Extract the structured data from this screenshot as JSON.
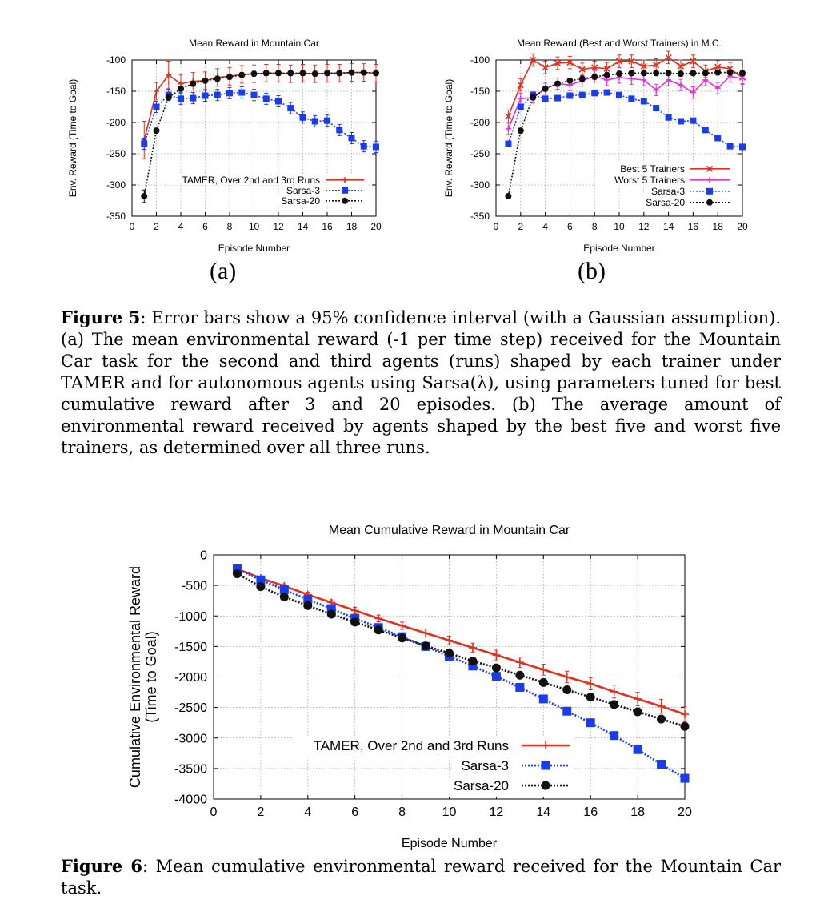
{
  "figures": {
    "panel_a": "(a)",
    "panel_b": "(b)",
    "fig5": {
      "label": "Figure 5",
      "text": ": Error bars show a 95% confidence interval (with a Gaussian assumption). (a) The mean environmental reward (-1 per time step) received for the Mountain Car task for the second and third agents (runs) shaped by each trainer under TAMER and for autonomous agents using Sarsa(λ), using parameters tuned for best cumulative reward after 3 and 20 episodes. (b) The average amount of environmental reward received by agents shaped by the best five and worst five trainers, as determined over all three runs."
    },
    "fig6": {
      "label": "Figure 6",
      "text": ": Mean cumulative environmental reward received for the Mountain Car task."
    }
  },
  "chart_data": [
    {
      "type": "line",
      "title": "Mean Reward in Mountain Car",
      "xlabel": "Episode Number",
      "ylabel": "Env. Reward (Time to Goal)",
      "xlim": [
        0,
        20
      ],
      "ylim": [
        -350,
        -100
      ],
      "xticks": [
        0,
        2,
        4,
        6,
        8,
        10,
        12,
        14,
        16,
        18,
        20
      ],
      "yticks": [
        -100,
        -150,
        -200,
        -250,
        -300,
        -350
      ],
      "grid": true,
      "legend": "bottom-right",
      "series": [
        {
          "name": "TAMER, Over 2nd and 3rd Runs",
          "color": "#e03020",
          "marker": "plus",
          "x": [
            1,
            2,
            3,
            4,
            5,
            6,
            7,
            8,
            9,
            10,
            11,
            12,
            13,
            14,
            15,
            16,
            17,
            18,
            19,
            20
          ],
          "y": [
            -228,
            -150,
            -124,
            -138,
            -134,
            -133,
            -128,
            -126,
            -123,
            -122,
            -121,
            -121,
            -122,
            -121,
            -122,
            -121,
            -121,
            -120,
            -120,
            -121
          ]
        },
        {
          "name": "Sarsa-3",
          "color": "#1a3cf0",
          "marker": "square",
          "x": [
            1,
            2,
            3,
            4,
            5,
            6,
            7,
            8,
            9,
            10,
            11,
            12,
            13,
            14,
            15,
            16,
            17,
            18,
            19,
            20
          ],
          "y": [
            -234,
            -175,
            -156,
            -162,
            -161,
            -157,
            -156,
            -153,
            -152,
            -156,
            -162,
            -166,
            -177,
            -192,
            -198,
            -197,
            -212,
            -225,
            -238,
            -239
          ]
        },
        {
          "name": "Sarsa-20",
          "color": "#101010",
          "marker": "circle",
          "x": [
            1,
            2,
            3,
            4,
            5,
            6,
            7,
            8,
            9,
            10,
            11,
            12,
            13,
            14,
            15,
            16,
            17,
            18,
            19,
            20
          ],
          "y": [
            -318,
            -213,
            -160,
            -146,
            -138,
            -133,
            -130,
            -127,
            -124,
            -122,
            -121,
            -121,
            -121,
            -121,
            -122,
            -121,
            -121,
            -120,
            -120,
            -121
          ]
        }
      ]
    },
    {
      "type": "line",
      "title": "Mean Reward (Best and Worst Trainers) in M.C.",
      "xlabel": "Episode Number",
      "ylabel": "Env. Reward (Time to Goal)",
      "xlim": [
        0,
        20
      ],
      "ylim": [
        -350,
        -100
      ],
      "xticks": [
        0,
        2,
        4,
        6,
        8,
        10,
        12,
        14,
        16,
        18,
        20
      ],
      "yticks": [
        -100,
        -150,
        -200,
        -250,
        -300,
        -350
      ],
      "grid": true,
      "legend": "bottom-right",
      "series": [
        {
          "name": "Best 5 Trainers",
          "color": "#e03020",
          "marker": "x",
          "x": [
            1,
            2,
            3,
            4,
            5,
            6,
            7,
            8,
            9,
            10,
            11,
            12,
            13,
            14,
            15,
            16,
            17,
            18,
            19,
            20
          ],
          "y": [
            -190,
            -140,
            -100,
            -112,
            -105,
            -104,
            -115,
            -112,
            -114,
            -102,
            -102,
            -110,
            -108,
            -96,
            -110,
            -102,
            -118,
            -111,
            -114,
            -128
          ]
        },
        {
          "name": "Worst 5 Trainers",
          "color": "#e030e0",
          "marker": "plus",
          "x": [
            1,
            2,
            3,
            4,
            5,
            6,
            7,
            8,
            9,
            10,
            11,
            12,
            13,
            14,
            15,
            16,
            17,
            18,
            19,
            20
          ],
          "y": [
            -210,
            -162,
            -160,
            -146,
            -138,
            -140,
            -133,
            -126,
            -132,
            -128,
            -130,
            -132,
            -148,
            -132,
            -140,
            -152,
            -132,
            -145,
            -126,
            -130
          ]
        },
        {
          "name": "Sarsa-3",
          "color": "#1a3cf0",
          "marker": "square",
          "x": [
            1,
            2,
            3,
            4,
            5,
            6,
            7,
            8,
            9,
            10,
            11,
            12,
            13,
            14,
            15,
            16,
            17,
            18,
            19,
            20
          ],
          "y": [
            -234,
            -175,
            -156,
            -162,
            -161,
            -157,
            -156,
            -153,
            -152,
            -156,
            -162,
            -166,
            -177,
            -192,
            -198,
            -197,
            -212,
            -225,
            -238,
            -239
          ]
        },
        {
          "name": "Sarsa-20",
          "color": "#101010",
          "marker": "circle",
          "x": [
            1,
            2,
            3,
            4,
            5,
            6,
            7,
            8,
            9,
            10,
            11,
            12,
            13,
            14,
            15,
            16,
            17,
            18,
            19,
            20
          ],
          "y": [
            -318,
            -213,
            -160,
            -146,
            -138,
            -133,
            -130,
            -127,
            -124,
            -122,
            -121,
            -121,
            -121,
            -121,
            -122,
            -121,
            -121,
            -120,
            -120,
            -121
          ]
        }
      ]
    },
    {
      "type": "line",
      "title": "Mean Cumulative Reward in Mountain Car",
      "xlabel": "Episode Number",
      "ylabel": "Cumulative Environmental Reward (Time to Goal)",
      "xlim": [
        0,
        20
      ],
      "ylim": [
        -4000,
        0
      ],
      "xticks": [
        0,
        2,
        4,
        6,
        8,
        10,
        12,
        14,
        16,
        18,
        20
      ],
      "yticks": [
        0,
        -500,
        -1000,
        -1500,
        -2000,
        -2500,
        -3000,
        -3500,
        -4000
      ],
      "grid": true,
      "legend": "bottom-left",
      "series": [
        {
          "name": "TAMER, Over 2nd and 3rd Runs",
          "color": "#e03020",
          "marker": "plus",
          "x": [
            1,
            2,
            3,
            4,
            5,
            6,
            7,
            8,
            9,
            10,
            11,
            12,
            13,
            14,
            15,
            16,
            17,
            18,
            19,
            20
          ],
          "y": [
            -230,
            -380,
            -510,
            -650,
            -780,
            -910,
            -1040,
            -1160,
            -1280,
            -1400,
            -1520,
            -1640,
            -1760,
            -1880,
            -2000,
            -2110,
            -2240,
            -2360,
            -2480,
            -2610
          ]
        },
        {
          "name": "Sarsa-3",
          "color": "#1a3cf0",
          "marker": "square",
          "x": [
            1,
            2,
            3,
            4,
            5,
            6,
            7,
            8,
            9,
            10,
            11,
            12,
            13,
            14,
            15,
            16,
            17,
            18,
            19,
            20
          ],
          "y": [
            -230,
            -410,
            -570,
            -730,
            -880,
            -1040,
            -1190,
            -1340,
            -1500,
            -1660,
            -1820,
            -1990,
            -2170,
            -2360,
            -2560,
            -2750,
            -2960,
            -3190,
            -3430,
            -3660
          ]
        },
        {
          "name": "Sarsa-20",
          "color": "#101010",
          "marker": "circle",
          "x": [
            1,
            2,
            3,
            4,
            5,
            6,
            7,
            8,
            9,
            10,
            11,
            12,
            13,
            14,
            15,
            16,
            17,
            18,
            19,
            20
          ],
          "y": [
            -310,
            -520,
            -690,
            -830,
            -970,
            -1100,
            -1230,
            -1360,
            -1490,
            -1610,
            -1740,
            -1850,
            -1970,
            -2090,
            -2210,
            -2330,
            -2450,
            -2570,
            -2690,
            -2810
          ]
        }
      ]
    }
  ]
}
